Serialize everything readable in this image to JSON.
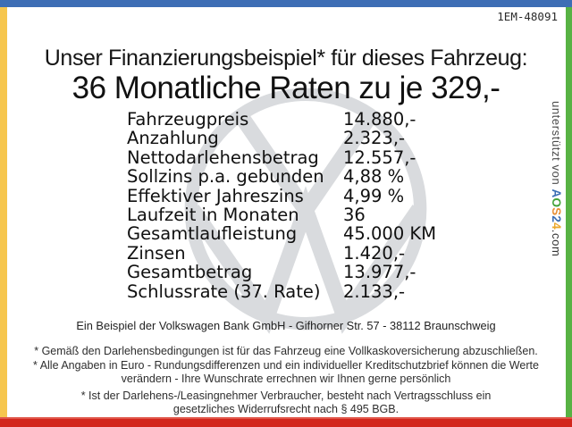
{
  "document": {
    "id_number": "1EM-48091",
    "title": "Unser Finanzierungsbeispiel* für dieses Fahrzeug:",
    "headline": "36 Monatliche Raten zu je 329,-"
  },
  "finance_table": {
    "rows": [
      {
        "label": "Fahrzeugpreis",
        "value": "14.880,-"
      },
      {
        "label": "Anzahlung",
        "value": "2.323,-"
      },
      {
        "label": "Nettodarlehensbetrag",
        "value": "12.557,-"
      },
      {
        "label": "Sollzins p.a. gebunden",
        "value": "4,88 %"
      },
      {
        "label": "Effektiver Jahreszins",
        "value": "4,99 %"
      },
      {
        "label": "Laufzeit in Monaten",
        "value": "36"
      },
      {
        "label": "Gesamtlaufleistung",
        "value": "45.000 KM"
      },
      {
        "label": "Zinsen",
        "value": "1.420,-"
      },
      {
        "label": "Gesamtbetrag",
        "value": "13.977,-"
      },
      {
        "label": "Schlussrate (37. Rate)",
        "value": "2.133,-"
      }
    ]
  },
  "footer": {
    "bank_line": "Ein Beispiel der Volkswagen Bank GmbH - Gifhorner Str. 57 - 38112 Braunschweig",
    "footnotes": [
      "* Gemäß den Darlehensbedingungen ist für das Fahrzeug eine Vollkaskoversicherung abzuschließen.",
      "* Alle Angaben in Euro - Rundungsdifferenzen und ein individueller Kreditschutzbrief können die Werte verändern - Ihre Wunschrate errechnen wir Ihnen gerne persönlich",
      "* Ist der Darlehens-/Leasingnehmer Verbraucher, besteht nach Vertragsschluss ein gesetzliches Widerrufsrecht nach § 495 BGB."
    ]
  },
  "sidebar": {
    "supported_by_text": "unterstützt von ",
    "brand_letters": [
      {
        "char": "A",
        "color": "#3a6db4"
      },
      {
        "char": "O",
        "color": "#43a33a"
      },
      {
        "char": "S",
        "color": "#e78f35"
      },
      {
        "char": "2",
        "color": "#3a6db4"
      },
      {
        "char": "4",
        "color": "#eba82d"
      }
    ],
    "brand_suffix": ".com"
  },
  "frame_colors": {
    "top": "#3e6eb5",
    "left": "#f6c64e",
    "right": "#58b244",
    "bottom": "#d3271d",
    "bottom_highlight": "#e0564a"
  },
  "watermark": {
    "name": "vw-logo",
    "color": "#d9dbde"
  }
}
